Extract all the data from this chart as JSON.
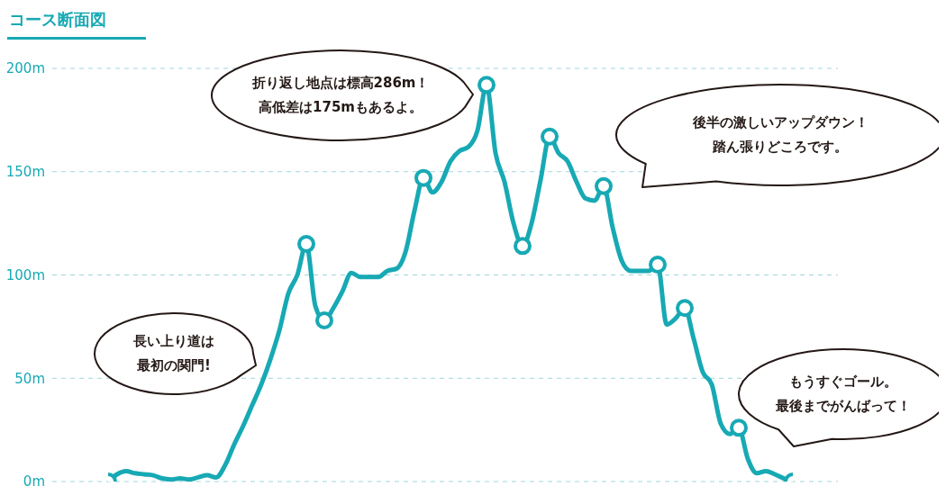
{
  "chart_data": {
    "type": "line",
    "title": "コース断面図",
    "categories": [
      null,
      null,
      null,
      null,
      null,
      null,
      null,
      null,
      null,
      null,
      null,
      null,
      null,
      null,
      null,
      null,
      null,
      null,
      null,
      null,
      null,
      null,
      null,
      null,
      null,
      null,
      null,
      null,
      null,
      null,
      null,
      null,
      null,
      null,
      null,
      null,
      null,
      null,
      null,
      null,
      null,
      null,
      null,
      null,
      null,
      null,
      null,
      null,
      null,
      null,
      null,
      null,
      null,
      null,
      null,
      null,
      null,
      null,
      null,
      null,
      null,
      null,
      null,
      null,
      null,
      null,
      null,
      null,
      null,
      null,
      null,
      null,
      null,
      null,
      null,
      null,
      null
    ],
    "series": [
      {
        "color": "#17a9b4",
        "marker": "none",
        "values": [
          0,
          3.5,
          5,
          4,
          3.5,
          3,
          1.5,
          1,
          1.5,
          1,
          2,
          3,
          2,
          8,
          18,
          27,
          37,
          47,
          59,
          73,
          91,
          100,
          115,
          85,
          78,
          84,
          92,
          101,
          99,
          99,
          99,
          102,
          103,
          111,
          131,
          147,
          140,
          145,
          155,
          160,
          162,
          170,
          192,
          159,
          145,
          125,
          114,
          125,
          146,
          167,
          159,
          155,
          145,
          137,
          136,
          143,
          123,
          107,
          102,
          102,
          102,
          105,
          76,
          79,
          84,
          69,
          53,
          47,
          28,
          23,
          26,
          11,
          4,
          5,
          3.5,
          1.5,
          0
        ]
      },
      {
        "type": "scatter",
        "color": "#17a9b4",
        "marker": "circle",
        "values": [
          0,
          null,
          null,
          null,
          null,
          null,
          null,
          null,
          null,
          null,
          null,
          null,
          null,
          null,
          null,
          null,
          null,
          null,
          null,
          null,
          null,
          null,
          115,
          null,
          78,
          null,
          null,
          null,
          null,
          null,
          null,
          null,
          null,
          null,
          null,
          147,
          null,
          null,
          null,
          null,
          null,
          null,
          192,
          null,
          null,
          null,
          114,
          null,
          null,
          167,
          null,
          null,
          null,
          null,
          null,
          143,
          null,
          null,
          null,
          null,
          null,
          105,
          null,
          null,
          84,
          null,
          null,
          null,
          null,
          null,
          26,
          null,
          null,
          null,
          null,
          null,
          0
        ]
      }
    ],
    "ylim": [
      0,
      200
    ],
    "yticks": [
      {
        "value": 0,
        "label": "0m"
      },
      {
        "value": 50,
        "label": "50m"
      },
      {
        "value": 100,
        "label": "100m"
      },
      {
        "value": 150,
        "label": "150m"
      },
      {
        "value": 200,
        "label": "200m"
      }
    ],
    "grid": "y",
    "tick_labels": "y",
    "annotations": [
      "長い上り道は最初の関門!",
      "折り返し地点は標高286m！高低差は175mもあるよ。",
      "後半の激しいアップダウン！踏ん張りどころです。",
      "もうすぐゴール。最後までがんばって！"
    ]
  }
}
